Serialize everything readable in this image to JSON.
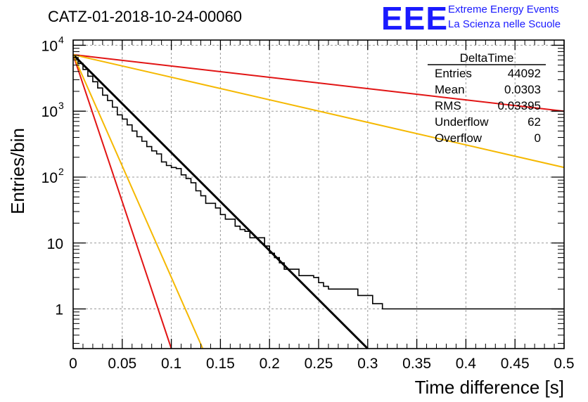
{
  "chart_data": {
    "type": "line",
    "title": "CATZ-01-2018-10-24-00060",
    "xlabel": "Time difference [s]",
    "ylabel": "Entries/bin",
    "xlim": [
      0,
      0.5
    ],
    "ylim": [
      0.25,
      12000
    ],
    "yscale": "log",
    "grid": true,
    "x_ticks": [
      "0",
      "0.05",
      "0.1",
      "0.15",
      "0.2",
      "0.25",
      "0.3",
      "0.35",
      "0.4",
      "0.45",
      "0.5"
    ],
    "y_ticks": [
      {
        "base": "1",
        "exp": ""
      },
      {
        "base": "10",
        "exp": ""
      },
      {
        "base": "10",
        "exp": "2"
      },
      {
        "base": "10",
        "exp": "3"
      },
      {
        "base": "10",
        "exp": "4"
      }
    ],
    "histogram": {
      "name": "DeltaTime",
      "bin_width": 0.005,
      "values": [
        6500,
        5300,
        4300,
        3400,
        2800,
        2250,
        1750,
        1450,
        1150,
        880,
        760,
        620,
        500,
        410,
        350,
        290,
        250,
        225,
        170,
        150,
        140,
        135,
        108,
        95,
        82,
        62,
        52,
        40,
        40,
        34,
        27,
        23,
        23,
        18,
        16,
        15,
        12,
        12,
        12,
        9,
        7,
        6,
        5,
        4,
        4,
        4,
        3.2,
        3.2,
        3.2,
        3,
        2.5,
        2.2,
        2,
        2,
        2,
        2,
        2,
        2,
        1.6,
        1.6,
        1.6,
        1.2,
        1.2,
        1,
        1,
        1,
        1,
        1,
        1,
        1,
        1,
        1,
        1,
        1,
        1,
        1,
        1,
        1,
        1,
        1,
        1,
        1,
        1,
        1,
        1,
        1,
        1,
        1,
        1,
        1,
        1,
        1,
        1,
        1,
        1,
        1,
        1,
        1,
        1,
        1
      ]
    },
    "fits": [
      {
        "color": "#000000",
        "start": 7200,
        "end_x": 0.3,
        "end_y": 0.25,
        "width": 3
      },
      {
        "color": "#e11414",
        "start": 7200,
        "end_x": 0.5,
        "end_y": 1000,
        "width": 2
      },
      {
        "color": "#f5b800",
        "start": 7200,
        "end_x": 0.5,
        "end_y": 140,
        "width": 2
      },
      {
        "color": "#e11414",
        "start": 7200,
        "end_x": 0.1,
        "end_y": 0.25,
        "width": 2
      },
      {
        "color": "#f5b800",
        "start": 7200,
        "end_x": 0.132,
        "end_y": 0.25,
        "width": 2
      }
    ],
    "stats": {
      "title": "DeltaTime",
      "rows": [
        {
          "label": "Entries",
          "value": "44092"
        },
        {
          "label": "Mean",
          "value": "0.0303"
        },
        {
          "label": "RMS",
          "value": "0.03395"
        },
        {
          "label": "Underflow",
          "value": "62"
        },
        {
          "label": "Overflow",
          "value": "0"
        }
      ]
    }
  },
  "logo": {
    "mark": "EEE",
    "line1": "Extreme Energy Events",
    "line2": "La Scienza nelle Scuole"
  }
}
